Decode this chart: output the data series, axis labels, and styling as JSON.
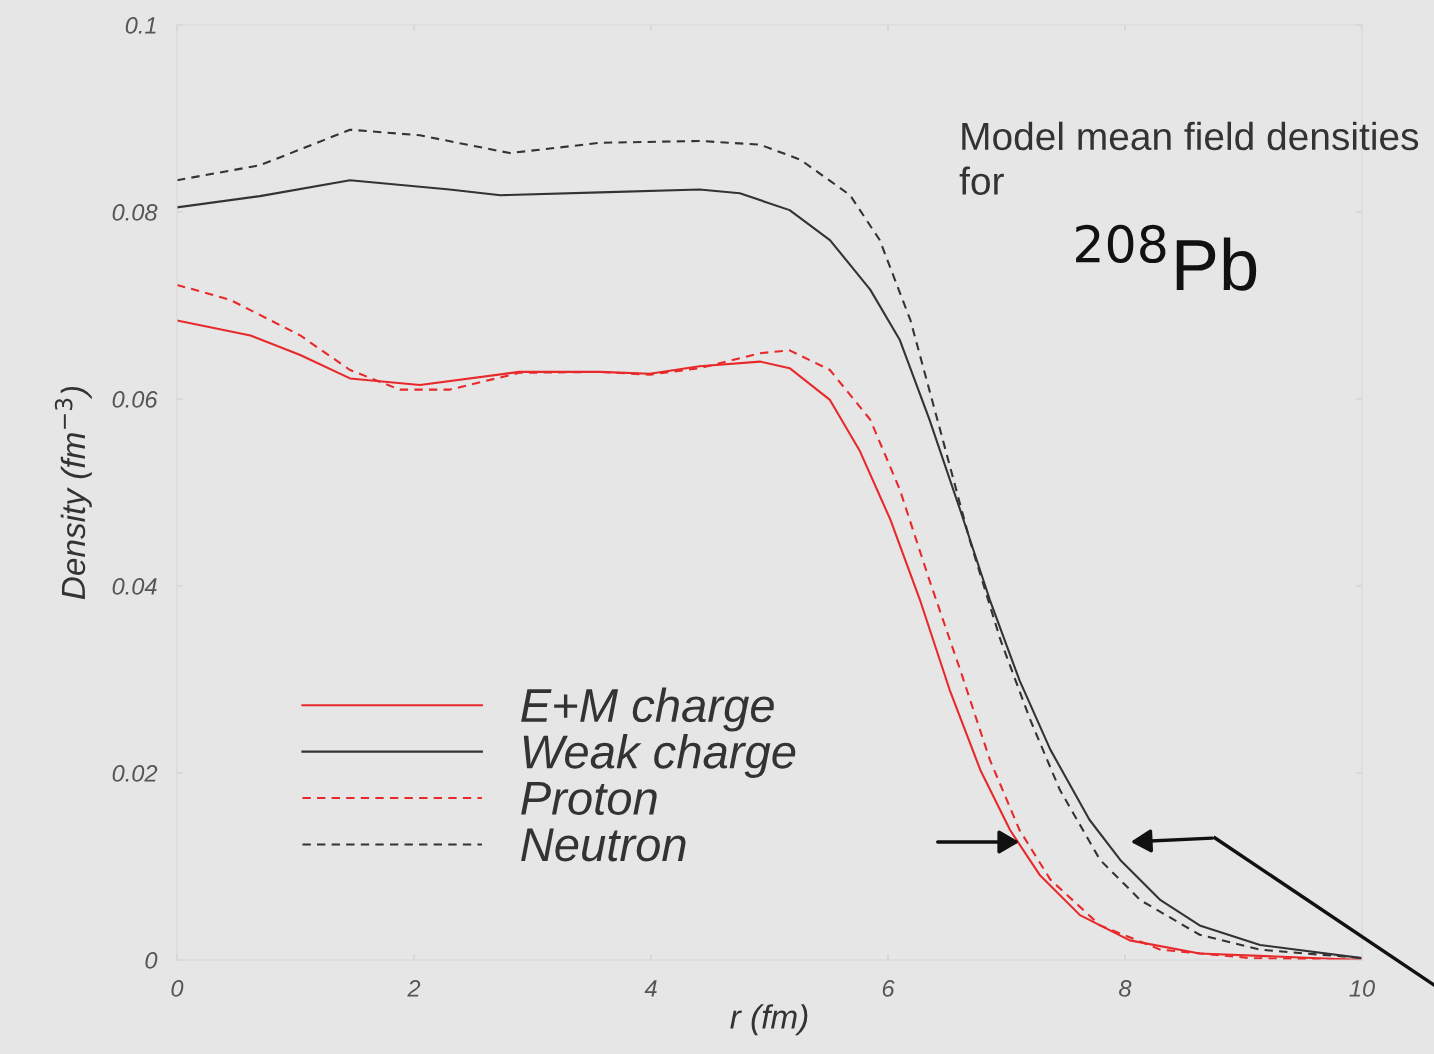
{
  "chart_data": {
    "type": "line",
    "xlabel": "r (fm)",
    "ylabel": "Density (fm$^{−3}$)",
    "annotations": [
      "Model mean field densities for",
      "$^{208}$Pb"
    ],
    "xlim": [
      0,
      10
    ],
    "ylim": [
      0,
      0.1
    ],
    "xticks": [
      0,
      2,
      4,
      6,
      8,
      10
    ],
    "yticks": [
      0,
      0.02,
      0.04,
      0.06,
      0.08,
      0.1
    ],
    "grid": false,
    "legend": "bottom left",
    "marker": "none",
    "series": [
      {
        "name": "E+M charge",
        "color": "#e8292b",
        "line_style": "solid",
        "x": [
          0,
          0.62,
          1.04,
          1.46,
          2.05,
          2.89,
          3.57,
          3.99,
          4.41,
          4.92,
          5.17,
          5.51,
          5.76,
          6.02,
          6.27,
          6.52,
          6.78,
          7.03,
          7.28,
          7.62,
          8.04,
          8.63,
          10
        ],
        "values": [
          0.0684,
          0.0668,
          0.0647,
          0.0622,
          0.0615,
          0.0629,
          0.0629,
          0.0627,
          0.0635,
          0.064,
          0.0633,
          0.0599,
          0.0545,
          0.0471,
          0.0385,
          0.0289,
          0.0203,
          0.0139,
          0.0091,
          0.0048,
          0.0021,
          0.0007,
          0
        ]
      },
      {
        "name": "Weak charge",
        "color": "#333333",
        "line_style": "solid",
        "x": [
          0,
          0.7,
          1.46,
          2.3,
          2.73,
          3.57,
          4.41,
          4.75,
          5.17,
          5.51,
          5.85,
          6.1,
          6.35,
          6.61,
          6.86,
          7.11,
          7.37,
          7.7,
          7.96,
          8.3,
          8.63,
          9.14,
          10
        ],
        "values": [
          0.0805,
          0.0817,
          0.0834,
          0.0824,
          0.0818,
          0.0821,
          0.0824,
          0.082,
          0.0802,
          0.077,
          0.0717,
          0.0663,
          0.0578,
          0.0481,
          0.0385,
          0.0299,
          0.0225,
          0.015,
          0.0107,
          0.0064,
          0.0037,
          0.0016,
          0.0002
        ]
      },
      {
        "name": "Proton",
        "color": "#e8292b",
        "line_style": "dashed",
        "x": [
          0,
          0.45,
          1.04,
          1.46,
          1.88,
          2.3,
          2.89,
          3.57,
          3.99,
          4.41,
          4.92,
          5.17,
          5.51,
          5.85,
          6.1,
          6.35,
          6.61,
          6.86,
          7.11,
          7.37,
          7.79,
          8.3,
          9.06,
          10
        ],
        "values": [
          0.0722,
          0.0706,
          0.0668,
          0.0631,
          0.061,
          0.061,
          0.0628,
          0.0629,
          0.0626,
          0.0633,
          0.0649,
          0.0652,
          0.0631,
          0.0578,
          0.0503,
          0.0406,
          0.031,
          0.0214,
          0.0139,
          0.0086,
          0.0037,
          0.0011,
          0.0002,
          0
        ]
      },
      {
        "name": "Neutron",
        "color": "#333333",
        "line_style": "dashed",
        "x": [
          0,
          0.7,
          1.46,
          2.05,
          2.81,
          3.57,
          4.41,
          4.92,
          5.26,
          5.68,
          5.93,
          6.19,
          6.44,
          6.69,
          6.95,
          7.2,
          7.45,
          7.79,
          8.13,
          8.63,
          9.14,
          10
        ],
        "values": [
          0.0834,
          0.085,
          0.0888,
          0.0882,
          0.0863,
          0.0874,
          0.0876,
          0.0872,
          0.0856,
          0.0818,
          0.077,
          0.0684,
          0.0567,
          0.0449,
          0.0342,
          0.0257,
          0.0182,
          0.0107,
          0.0064,
          0.0027,
          0.0011,
          0.0002
        ]
      }
    ]
  }
}
